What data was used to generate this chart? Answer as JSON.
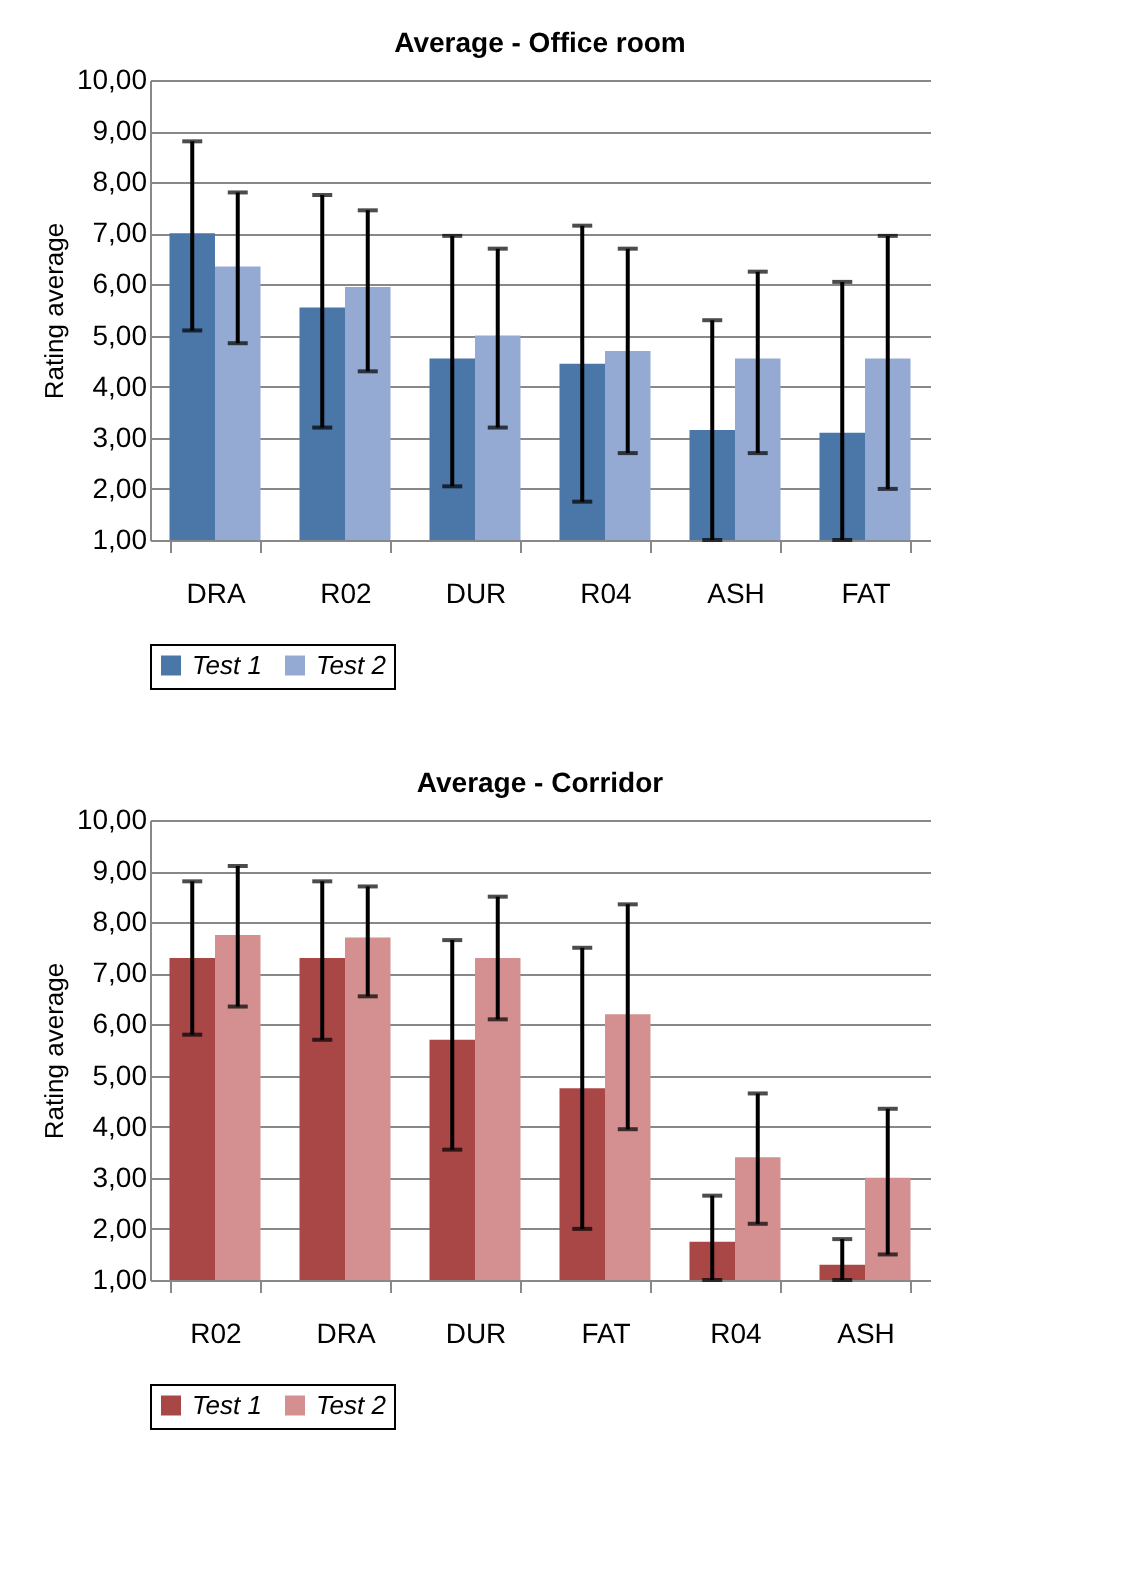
{
  "chart_data": [
    {
      "type": "bar",
      "title": "Average - Office room",
      "ylabel": "Rating average",
      "categories": [
        "DRA",
        "R02",
        "DUR",
        "R04",
        "ASH",
        "FAT"
      ],
      "ylim": [
        1,
        10
      ],
      "yticks": [
        {
          "value": 1,
          "label": "1,00"
        },
        {
          "value": 2,
          "label": "2,00"
        },
        {
          "value": 3,
          "label": "3,00"
        },
        {
          "value": 4,
          "label": "4,00"
        },
        {
          "value": 5,
          "label": "5,00"
        },
        {
          "value": 6,
          "label": "6,00"
        },
        {
          "value": 7,
          "label": "7,00"
        },
        {
          "value": 8,
          "label": "8,00"
        },
        {
          "value": 9,
          "label": "9,00"
        },
        {
          "value": 10,
          "label": "10,00"
        }
      ],
      "grid": "y",
      "legend": "bottom",
      "series": [
        {
          "name": "Test 1",
          "color": "#4a76a8",
          "values": [
            7.0,
            5.55,
            4.55,
            4.45,
            3.15,
            3.1
          ],
          "errors": [
            [
              5.1,
              8.8
            ],
            [
              3.2,
              7.75
            ],
            [
              2.05,
              6.95
            ],
            [
              1.75,
              7.15
            ],
            [
              1.0,
              5.3
            ],
            [
              1.0,
              6.05
            ]
          ]
        },
        {
          "name": "Test 2",
          "color": "#95aad2",
          "values": [
            6.35,
            5.95,
            5.0,
            4.7,
            4.55,
            4.55
          ],
          "errors": [
            [
              4.85,
              7.8
            ],
            [
              4.3,
              7.45
            ],
            [
              3.2,
              6.7
            ],
            [
              2.7,
              6.7
            ],
            [
              2.7,
              6.25
            ],
            [
              2.0,
              6.95
            ]
          ]
        }
      ]
    },
    {
      "type": "bar",
      "title": "Average - Corridor",
      "ylabel": "Rating average",
      "categories": [
        "R02",
        "DRA",
        "DUR",
        "FAT",
        "R04",
        "ASH"
      ],
      "ylim": [
        1,
        10
      ],
      "yticks": [
        {
          "value": 1,
          "label": "1,00"
        },
        {
          "value": 2,
          "label": "2,00"
        },
        {
          "value": 3,
          "label": "3,00"
        },
        {
          "value": 4,
          "label": "4,00"
        },
        {
          "value": 5,
          "label": "5,00"
        },
        {
          "value": 6,
          "label": "6,00"
        },
        {
          "value": 7,
          "label": "7,00"
        },
        {
          "value": 8,
          "label": "8,00"
        },
        {
          "value": 9,
          "label": "9,00"
        },
        {
          "value": 10,
          "label": "10,00"
        }
      ],
      "grid": "y",
      "legend": "bottom",
      "series": [
        {
          "name": "Test 1",
          "color": "#a84745",
          "values": [
            7.3,
            7.3,
            5.7,
            4.75,
            1.75,
            1.3
          ],
          "errors": [
            [
              5.8,
              8.8
            ],
            [
              5.7,
              8.8
            ],
            [
              3.55,
              7.65
            ],
            [
              2.0,
              7.5
            ],
            [
              1.0,
              2.65
            ],
            [
              1.0,
              1.8
            ]
          ]
        },
        {
          "name": "Test 2",
          "color": "#d49090",
          "values": [
            7.75,
            7.7,
            7.3,
            6.2,
            3.4,
            3.0
          ],
          "errors": [
            [
              6.35,
              9.1
            ],
            [
              6.55,
              8.7
            ],
            [
              6.1,
              8.5
            ],
            [
              3.95,
              8.35
            ],
            [
              2.1,
              4.65
            ],
            [
              1.5,
              4.35
            ]
          ]
        }
      ]
    }
  ]
}
